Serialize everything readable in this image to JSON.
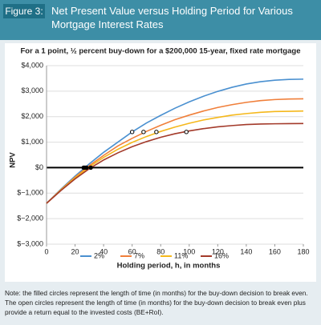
{
  "chart_data": {
    "type": "line",
    "figure_label": "Figure 3:",
    "title": "Net Present Value versus Holding Period for Various Mortgage Interest Rates",
    "subtitle": "For a 1 point, ½ percent buy-down for a $200,000 15-year, fixed rate mortgage",
    "xlabel": "Holding period, h, in months",
    "ylabel": "NPV",
    "note": "Note: the filled circles represent the length of time (in months) for the buy-down decision to break even. The open circles represent the length of time (in months) for the buy-down decision to break even plus provide a return equal to the invested costs (BE+RoI).",
    "x": [
      0,
      10,
      20,
      30,
      40,
      50,
      60,
      70,
      80,
      90,
      100,
      110,
      120,
      130,
      140,
      150,
      160,
      170,
      180
    ],
    "series": [
      {
        "name": "2%",
        "color": "#4a90d0",
        "values": [
          -1400,
          -850,
          -330,
          150,
          600,
          1000,
          1400,
          1750,
          2050,
          2330,
          2580,
          2800,
          2990,
          3150,
          3280,
          3370,
          3430,
          3460,
          3470
        ]
      },
      {
        "name": "7%",
        "color": "#f07f3a",
        "values": [
          -1400,
          -870,
          -370,
          80,
          480,
          850,
          1150,
          1420,
          1660,
          1880,
          2060,
          2220,
          2360,
          2470,
          2560,
          2630,
          2670,
          2690,
          2700
        ]
      },
      {
        "name": "11%",
        "color": "#f5b81c",
        "values": [
          -1400,
          -880,
          -400,
          30,
          400,
          720,
          990,
          1220,
          1420,
          1590,
          1740,
          1870,
          1970,
          2060,
          2120,
          2170,
          2200,
          2210,
          2220
        ]
      },
      {
        "name": "16%",
        "color": "#a33a2a",
        "values": [
          -1400,
          -900,
          -440,
          -40,
          300,
          580,
          820,
          1020,
          1190,
          1330,
          1440,
          1530,
          1600,
          1650,
          1690,
          1710,
          1720,
          1725,
          1730
        ]
      }
    ],
    "break_even": {
      "x": [
        26,
        27,
        28,
        31
      ],
      "values": [
        0,
        0,
        0,
        0
      ]
    },
    "break_even_plus_return": {
      "x": [
        60,
        68,
        77,
        98
      ],
      "values": [
        1400,
        1400,
        1400,
        1400
      ]
    },
    "xlim": [
      0,
      180
    ],
    "xticks": [
      0,
      20,
      40,
      60,
      80,
      100,
      120,
      140,
      160,
      180
    ],
    "ylim": [
      -3000,
      4000
    ],
    "yticks": [
      {
        "value": -3000,
        "label": "$−3,000"
      },
      {
        "value": -2000,
        "label": "$−2,000"
      },
      {
        "value": -1000,
        "label": "$−1,000"
      },
      {
        "value": 0,
        "label": "$0"
      },
      {
        "value": 1000,
        "label": "$1,000"
      },
      {
        "value": 2000,
        "label": "$2,000"
      },
      {
        "value": 3000,
        "label": "$3,000"
      },
      {
        "value": 4000,
        "label": "$4,000"
      }
    ],
    "grid": true,
    "legend": "bottom"
  }
}
